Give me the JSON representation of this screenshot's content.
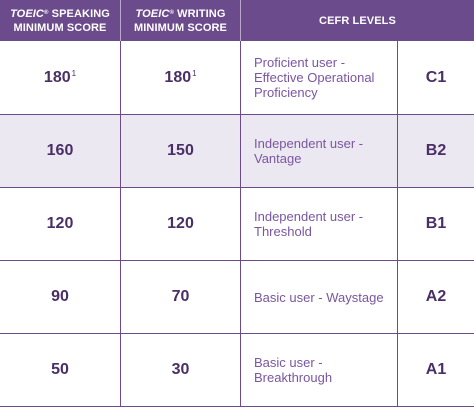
{
  "header": {
    "speaking_brand": "TOEIC",
    "speaking_mark": "®",
    "speaking_title_rest": " SPEAKING",
    "speaking_subtitle": "MINIMUM SCORE",
    "writing_brand": "TOEIC",
    "writing_mark": "®",
    "writing_title_rest": " WRITING",
    "writing_subtitle": "MINIMUM SCORE",
    "cefr_title": "CEFR LEVELS"
  },
  "rows": [
    {
      "speaking": "180",
      "speaking_note": "1",
      "writing": "180",
      "writing_note": "1",
      "description": "Proficient user - Effective Operational Proficiency",
      "level": "C1"
    },
    {
      "speaking": "160",
      "speaking_note": "",
      "writing": "150",
      "writing_note": "",
      "description": "Independent user - Vantage",
      "level": "B2"
    },
    {
      "speaking": "120",
      "speaking_note": "",
      "writing": "120",
      "writing_note": "",
      "description": "Independent user - Threshold",
      "level": "B1"
    },
    {
      "speaking": "90",
      "speaking_note": "",
      "writing": "70",
      "writing_note": "",
      "description": "Basic user - Waystage",
      "level": "A2"
    },
    {
      "speaking": "50",
      "speaking_note": "",
      "writing": "30",
      "writing_note": "",
      "description": "Basic user - Breakthrough",
      "level": "A1"
    }
  ],
  "colors": {
    "header_bg": "#6b4b8c",
    "shaded_row_bg": "#ece8f1",
    "number_text": "#4a2f66",
    "description_text": "#7a56a0"
  }
}
